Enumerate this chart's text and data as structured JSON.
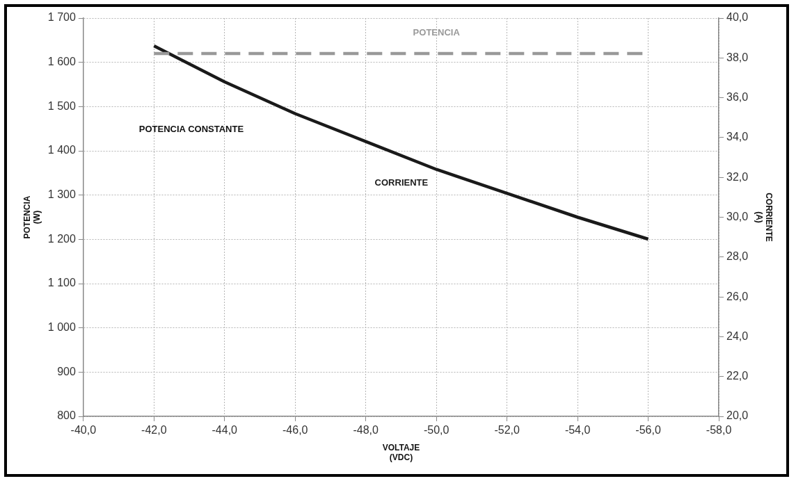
{
  "chart_data": {
    "type": "line",
    "xlabel": "VOLTAJE (VDC)",
    "ylabel": "POTENCIA (W)",
    "y2label": "CORRIENTE (A)",
    "xlim": [
      -40,
      -58
    ],
    "xticks": [
      {
        "value": -40,
        "label": "-40,0"
      },
      {
        "value": -42,
        "label": "-42,0"
      },
      {
        "value": -44,
        "label": "-44,0"
      },
      {
        "value": -46,
        "label": "-46,0"
      },
      {
        "value": -48,
        "label": "-48,0"
      },
      {
        "value": -50,
        "label": "-50,0"
      },
      {
        "value": -52,
        "label": "-52,0"
      },
      {
        "value": -54,
        "label": "-54,0"
      },
      {
        "value": -56,
        "label": "-56,0"
      },
      {
        "value": -58,
        "label": "-58,0"
      }
    ],
    "ylim": [
      800,
      1700
    ],
    "yticks": [
      800,
      900,
      {
        "value": 1000,
        "label": "1 000"
      },
      {
        "value": 1100,
        "label": "1 100"
      },
      {
        "value": 1200,
        "label": "1 200"
      },
      {
        "value": 1300,
        "label": "1 300"
      },
      {
        "value": 1400,
        "label": "1 400"
      },
      {
        "value": 1500,
        "label": "1 500"
      },
      {
        "value": 1600,
        "label": "1 600"
      },
      {
        "value": 1700,
        "label": "1 700"
      }
    ],
    "y2lim": [
      20,
      40
    ],
    "y2ticks": [
      {
        "value": 20,
        "label": "20,0"
      },
      {
        "value": 22,
        "label": "22,0"
      },
      {
        "value": 24,
        "label": "24,0"
      },
      {
        "value": 26,
        "label": "26,0"
      },
      {
        "value": 28,
        "label": "28,0"
      },
      {
        "value": 30,
        "label": "30,0"
      },
      {
        "value": 32,
        "label": "32,0"
      },
      {
        "value": 34,
        "label": "34,0"
      },
      {
        "value": 36,
        "label": "36,0"
      },
      {
        "value": 38,
        "label": "38,0"
      },
      {
        "value": 40,
        "label": "40,0"
      }
    ],
    "x": [
      -42,
      -44,
      -46,
      -48,
      -50,
      -52,
      -54,
      -56
    ],
    "series": [
      {
        "name": "POTENCIA",
        "color": "#999999",
        "line_style": "dashed",
        "values": [
          1620,
          1620,
          1620,
          1620,
          1620,
          1620,
          1620,
          1620
        ]
      },
      {
        "name": "CORRIENTE",
        "color": "#1a1a1a",
        "axis": "y2",
        "values": [
          38.6,
          36.8,
          35.2,
          33.8,
          32.4,
          31.2,
          30.0,
          28.9
        ]
      }
    ],
    "annotations": [
      "POTENCIA CONSTANTE"
    ],
    "grid": true,
    "legend": false,
    "marker": "none"
  }
}
